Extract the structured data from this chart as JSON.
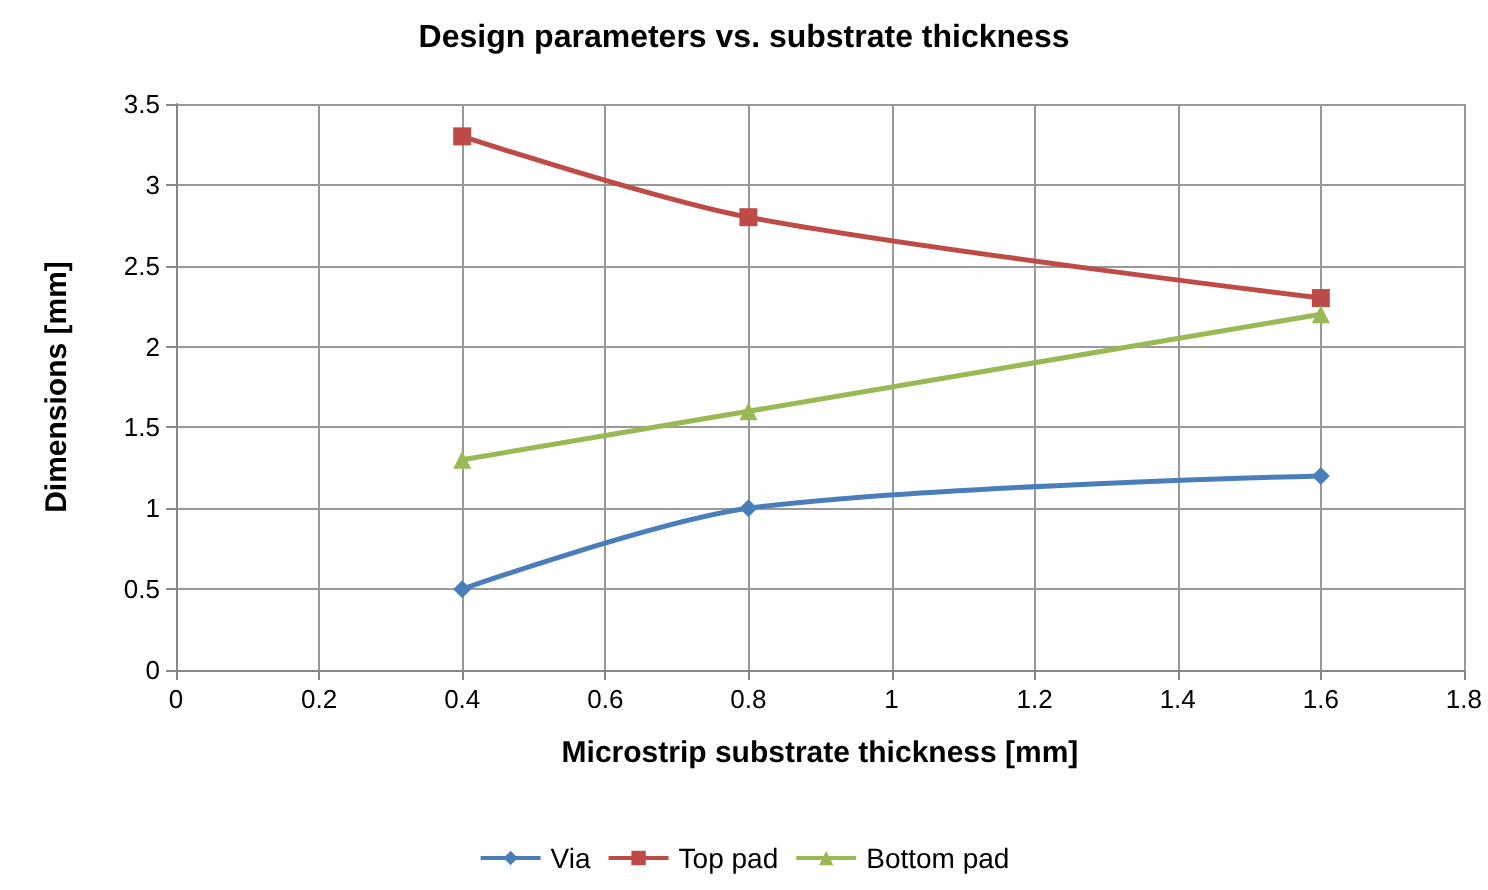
{
  "chart_data": {
    "type": "line",
    "title": "Design parameters vs. substrate thickness",
    "xlabel": "Microstrip substrate thickness [mm]",
    "ylabel": "Dimensions [mm]",
    "x": [
      0.4,
      0.8,
      1.6
    ],
    "series": [
      {
        "name": "Via",
        "color": "#4a7ebb",
        "marker": "diamond",
        "values": [
          0.5,
          1.0,
          1.2
        ]
      },
      {
        "name": "Top pad",
        "color": "#be4b48",
        "marker": "square",
        "values": [
          3.3,
          2.8,
          2.3
        ]
      },
      {
        "name": "Bottom pad",
        "color": "#98b954",
        "marker": "triangle",
        "values": [
          1.3,
          1.6,
          2.2
        ]
      }
    ],
    "xlim": [
      0,
      1.8
    ],
    "xticks": [
      0,
      0.2,
      0.4,
      0.6,
      0.8,
      1,
      1.2,
      1.4,
      1.6,
      1.8
    ],
    "ylim": [
      0,
      3.5
    ],
    "yticks": [
      0,
      0.5,
      1,
      1.5,
      2,
      2.5,
      3,
      3.5
    ],
    "grid": true,
    "legend": "bottom"
  }
}
